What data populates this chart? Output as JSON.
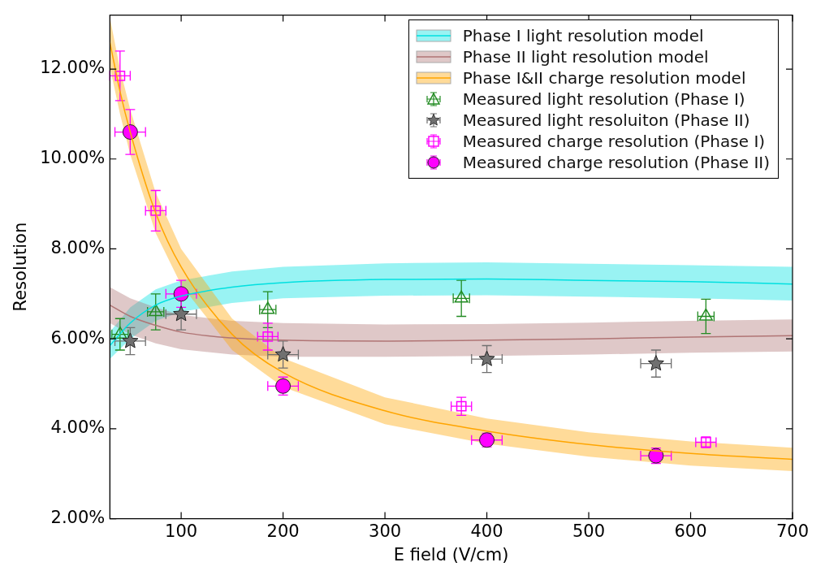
{
  "chart_data": {
    "type": "scatter",
    "xlabel": "E field (V/cm)",
    "ylabel": "Resolution",
    "xlim": [
      30,
      700
    ],
    "xticks": [
      100,
      200,
      300,
      400,
      500,
      600,
      700
    ],
    "ylim": [
      2,
      13.2
    ],
    "yticks": [
      {
        "value": 2,
        "label": "2.00%"
      },
      {
        "value": 4,
        "label": "4.00%"
      },
      {
        "value": 6,
        "label": "6.00%"
      },
      {
        "value": 8,
        "label": "8.00%"
      },
      {
        "value": 10,
        "label": "10.00%"
      },
      {
        "value": 12,
        "label": "12.00%"
      }
    ],
    "legend": "top right",
    "series": [
      {
        "name": "Phase I light resolution model",
        "type": "line",
        "marker": "none",
        "color": "#00e0e0",
        "x": [
          30,
          50,
          75,
          100,
          150,
          200,
          300,
          400,
          500,
          600,
          700
        ],
        "values": [
          5.85,
          6.35,
          6.75,
          6.95,
          7.15,
          7.25,
          7.32,
          7.33,
          7.3,
          7.27,
          7.22
        ],
        "lower": [
          5.55,
          6.0,
          6.4,
          6.6,
          6.8,
          6.9,
          6.96,
          6.97,
          6.94,
          6.9,
          6.85
        ],
        "upper": [
          6.15,
          6.7,
          7.1,
          7.3,
          7.5,
          7.6,
          7.68,
          7.7,
          7.67,
          7.64,
          7.6
        ]
      },
      {
        "name": "Phase II light resolution model",
        "type": "line",
        "marker": "none",
        "color": "#b07575",
        "x": [
          30,
          50,
          75,
          100,
          150,
          200,
          300,
          400,
          500,
          600,
          700
        ],
        "values": [
          6.75,
          6.5,
          6.3,
          6.15,
          6.02,
          5.97,
          5.95,
          5.97,
          6.0,
          6.04,
          6.07
        ],
        "lower": [
          6.35,
          6.1,
          5.9,
          5.77,
          5.65,
          5.6,
          5.6,
          5.62,
          5.65,
          5.69,
          5.72
        ],
        "upper": [
          7.15,
          6.9,
          6.7,
          6.53,
          6.4,
          6.35,
          6.32,
          6.33,
          6.36,
          6.4,
          6.43
        ]
      },
      {
        "name": "Phase I&II charge resolution model",
        "type": "line",
        "marker": "none",
        "color": "#ffa500",
        "x": [
          30,
          40,
          50,
          75,
          100,
          150,
          200,
          300,
          400,
          500,
          600,
          700
        ],
        "values": [
          12.6,
          11.5,
          10.6,
          8.8,
          7.6,
          6.1,
          5.25,
          4.4,
          3.95,
          3.65,
          3.45,
          3.32
        ],
        "lower": [
          12.05,
          11.0,
          10.1,
          8.35,
          7.2,
          5.75,
          4.93,
          4.1,
          3.67,
          3.38,
          3.18,
          3.06
        ],
        "upper": [
          13.15,
          12.0,
          11.1,
          9.25,
          8.0,
          6.45,
          5.57,
          4.7,
          4.23,
          3.92,
          3.72,
          3.58
        ]
      },
      {
        "name": "Measured light resolution (Phase I)",
        "marker": "triangle",
        "color": "#228b22",
        "x": [
          40,
          75,
          185,
          375,
          615
        ],
        "values": [
          6.1,
          6.6,
          6.65,
          6.9,
          6.5
        ],
        "errors": [
          0.35,
          0.4,
          0.4,
          0.4,
          0.38
        ],
        "xerrors": [
          8,
          8,
          8,
          8,
          8
        ]
      },
      {
        "name": "Measured light resoluiton (Phase II)",
        "marker": "star",
        "color": "#707070",
        "x": [
          50,
          100,
          200,
          400,
          566
        ],
        "values": [
          5.95,
          6.55,
          5.65,
          5.55,
          5.45
        ],
        "errors": [
          0.3,
          0.35,
          0.3,
          0.3,
          0.3
        ],
        "xerrors": [
          15,
          15,
          15,
          15,
          15
        ]
      },
      {
        "name": "Measured charge resolution (Phase I)",
        "marker": "square",
        "color": "#ff00ff",
        "x": [
          40,
          75,
          185,
          375,
          615
        ],
        "values": [
          11.85,
          8.85,
          6.05,
          4.5,
          3.7
        ],
        "errors": [
          0.55,
          0.45,
          0.3,
          0.2,
          0.12
        ],
        "xerrors": [
          10,
          10,
          10,
          10,
          10
        ]
      },
      {
        "name": "Measured charge resolution (Phase II)",
        "marker": "circle",
        "color": "#ff00ff",
        "x": [
          50,
          100,
          200,
          400,
          566
        ],
        "values": [
          10.6,
          7.0,
          4.95,
          3.75,
          3.4
        ],
        "errors": [
          0.5,
          0.3,
          0.2,
          0.15,
          0.17
        ],
        "xerrors": [
          15,
          15,
          15,
          15,
          15
        ]
      }
    ]
  }
}
